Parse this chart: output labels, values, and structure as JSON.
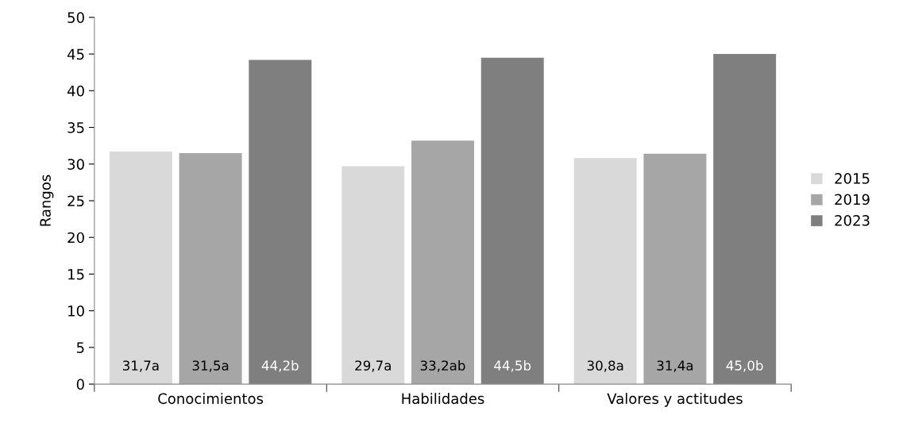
{
  "chart_data": {
    "type": "bar",
    "ylabel": "Rangos",
    "categories": [
      "Conocimientos",
      "Habilidades",
      "Valores y actitudes"
    ],
    "series": [
      {
        "name": "2015",
        "color": "#d9d9d9",
        "values": [
          31.7,
          29.7,
          30.8
        ],
        "value_labels": [
          "31,7a",
          "29,7a",
          "30,8a"
        ]
      },
      {
        "name": "2019",
        "color": "#a6a6a6",
        "values": [
          31.5,
          33.2,
          31.4
        ],
        "value_labels": [
          "31,5a",
          "33,2ab",
          "31,4a"
        ]
      },
      {
        "name": "2023",
        "color": "#7f7f7f",
        "values": [
          44.2,
          44.5,
          45.0
        ],
        "value_labels": [
          "44,2b",
          "44,5b",
          "45,0b"
        ]
      }
    ],
    "ylim": [
      0,
      50
    ],
    "yticks": [
      0,
      5,
      10,
      15,
      20,
      25,
      30,
      35,
      40,
      45,
      50
    ],
    "grid": false,
    "legend": "right"
  }
}
